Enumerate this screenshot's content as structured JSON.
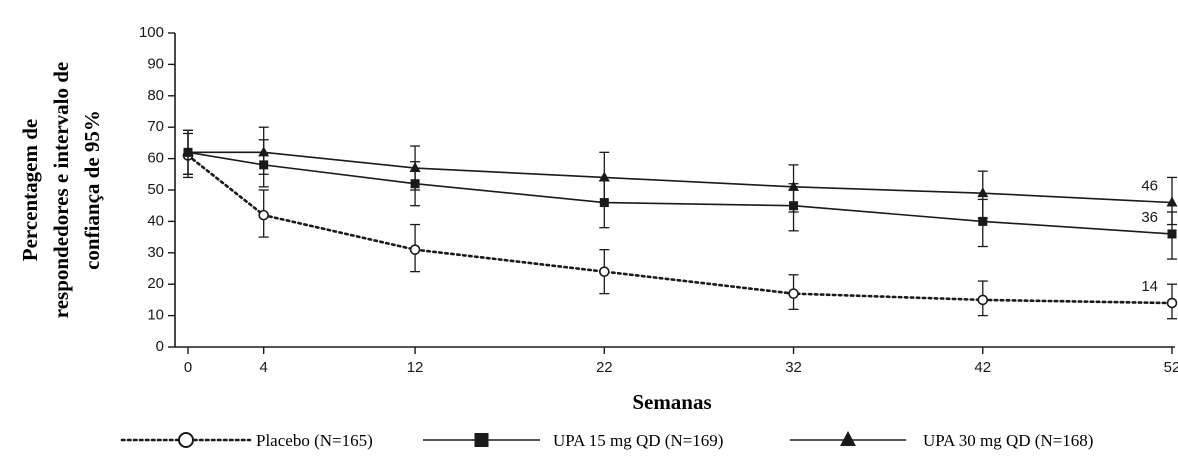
{
  "chart_data": {
    "type": "line",
    "xlabel": "Semanas",
    "ylabel_lines": [
      "Percentagem de",
      "respondedores e intervalo de",
      "confiança de 95%"
    ],
    "x": [
      0,
      4,
      12,
      22,
      32,
      42,
      52
    ],
    "x_tick_labels": [
      "0",
      "4",
      "12",
      "22",
      "32",
      "42",
      "52"
    ],
    "y_ticks": [
      0,
      10,
      20,
      30,
      40,
      50,
      60,
      70,
      80,
      90,
      100
    ],
    "xlim": [
      0,
      52
    ],
    "ylim": [
      0,
      100
    ],
    "grid": false,
    "legend_position": "bottom",
    "series": [
      {
        "name": "Placebo (N=165)",
        "marker": "open-circle",
        "line_style": "dotted",
        "values": [
          61,
          42,
          31,
          24,
          17,
          15,
          14
        ],
        "ci_lower": [
          54,
          35,
          24,
          17,
          12,
          10,
          9
        ],
        "ci_upper": [
          68,
          50,
          39,
          31,
          23,
          21,
          20
        ],
        "end_label": "14"
      },
      {
        "name": "UPA 15 mg QD (N=169)",
        "marker": "filled-square",
        "line_style": "solid",
        "values": [
          62,
          58,
          52,
          46,
          45,
          40,
          36
        ],
        "ci_lower": [
          55,
          51,
          45,
          38,
          37,
          32,
          28
        ],
        "ci_upper": [
          69,
          66,
          59,
          53,
          52,
          47,
          43
        ],
        "end_label": "36"
      },
      {
        "name": "UPA 30 mg QD (N=168)",
        "marker": "filled-triangle",
        "line_style": "solid",
        "values": [
          62,
          62,
          57,
          54,
          51,
          49,
          46
        ],
        "ci_lower": [
          55,
          55,
          50,
          46,
          43,
          41,
          39
        ],
        "ci_upper": [
          69,
          70,
          64,
          62,
          58,
          56,
          54
        ],
        "end_label": "46"
      }
    ]
  },
  "colors": {
    "ink": "#1a1a1a",
    "background": "#ffffff"
  }
}
